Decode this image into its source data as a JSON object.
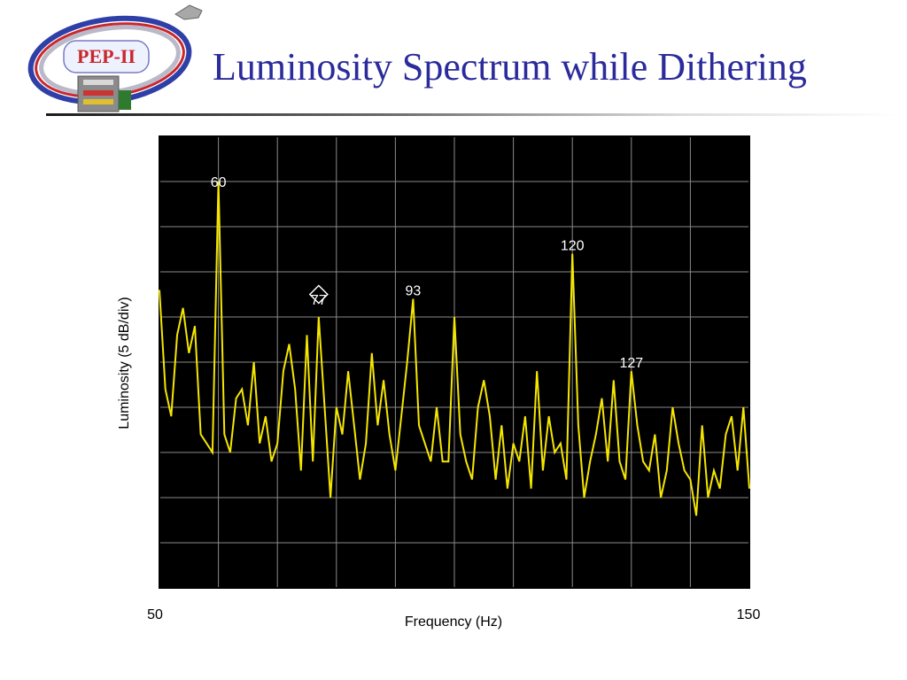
{
  "slide": {
    "title": "Luminosity Spectrum while Dithering",
    "logo_text": "PEP-II"
  },
  "colors": {
    "title": "#2b2b9c",
    "plot_background": "#000000",
    "grid": "#8a8a8a",
    "trace": "#f5e600",
    "logo_text": "#c8282d"
  },
  "chart_data": {
    "type": "line",
    "title": "",
    "xlabel": "Frequency (Hz)",
    "ylabel": "Luminosity (5 dB/div)",
    "xlim": [
      50,
      150
    ],
    "ylim": [
      0,
      50
    ],
    "grid": true,
    "x_tick_labels": [
      "50",
      "150"
    ],
    "peak_labels": [
      {
        "text": "60",
        "x": 60,
        "y": 44
      },
      {
        "text": "77",
        "x": 77,
        "y": 31
      },
      {
        "text": "93",
        "x": 93,
        "y": 32
      },
      {
        "text": "120",
        "x": 120,
        "y": 37
      },
      {
        "text": "127",
        "x": 130,
        "y": 24
      }
    ],
    "marker": {
      "x": 77,
      "y": 32.5,
      "shape": "diamond"
    },
    "series": [
      {
        "x": [
          50,
          51,
          52,
          53,
          54,
          55,
          56,
          57,
          58,
          59,
          60,
          61,
          62,
          63,
          64,
          65,
          66,
          67,
          68,
          69,
          70,
          71,
          72,
          73,
          74,
          75,
          76,
          77,
          78,
          79,
          80,
          81,
          82,
          83,
          84,
          85,
          86,
          87,
          88,
          89,
          90,
          91,
          92,
          93,
          94,
          95,
          96,
          97,
          98,
          99,
          100,
          101,
          102,
          103,
          104,
          105,
          106,
          107,
          108,
          109,
          110,
          111,
          112,
          113,
          114,
          115,
          116,
          117,
          118,
          119,
          120,
          121,
          122,
          123,
          124,
          125,
          126,
          127,
          128,
          129,
          130,
          131,
          132,
          133,
          134,
          135,
          136,
          137,
          138,
          139,
          140,
          141,
          142,
          143,
          144,
          145,
          146,
          147,
          148,
          149,
          150
        ],
        "y": [
          33,
          22,
          19,
          28,
          31,
          26,
          29,
          17,
          16,
          15,
          45,
          17,
          15,
          21,
          22,
          18,
          25,
          16,
          19,
          14,
          16,
          24,
          27,
          22,
          13,
          28,
          14,
          30,
          20,
          10,
          20,
          17,
          24,
          18,
          12,
          16,
          26,
          18,
          23,
          17,
          13,
          19,
          25,
          32,
          18,
          16,
          14,
          20,
          14,
          14,
          30,
          17,
          14,
          12,
          20,
          23,
          19,
          12,
          18,
          11,
          16,
          14,
          19,
          11,
          24,
          13,
          19,
          15,
          16,
          12,
          37,
          18,
          10,
          14,
          17,
          21,
          14,
          23,
          14,
          12,
          24,
          18,
          14,
          13,
          17,
          10,
          13,
          20,
          16,
          13,
          12,
          8,
          18,
          10,
          13,
          11,
          17,
          19,
          13,
          20,
          11
        ]
      }
    ]
  }
}
